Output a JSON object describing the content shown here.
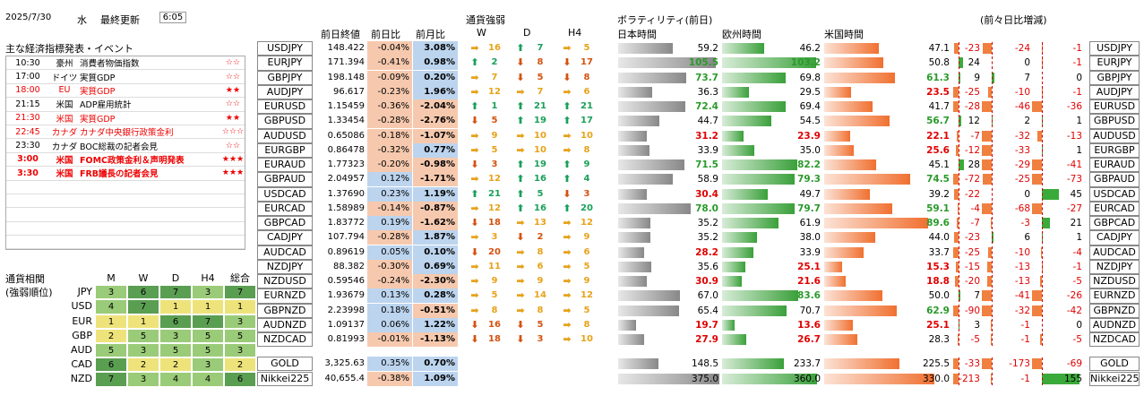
{
  "date": "2025/7/30",
  "weekday": "水",
  "updated_label": "最終更新",
  "updated_time": "6:05",
  "events_title": "主な経済指標発表・イベント",
  "events": [
    {
      "time": "10:30",
      "country": "豪州",
      "name": "消費者物価指数",
      "stars": "☆☆",
      "red": false,
      "bold": false
    },
    {
      "time": "17:00",
      "country": "ドイツ",
      "name": "実質GDP",
      "stars": "☆☆",
      "red": false,
      "bold": false
    },
    {
      "time": "18:00",
      "country": "EU",
      "name": "実質GDP",
      "stars": "★★",
      "red": true,
      "bold": false
    },
    {
      "time": "21:15",
      "country": "米国",
      "name": "ADP雇用統計",
      "stars": "☆☆",
      "red": false,
      "bold": false
    },
    {
      "time": "21:30",
      "country": "米国",
      "name": "実質GDP",
      "stars": "★★",
      "red": true,
      "bold": false
    },
    {
      "time": "22:45",
      "country": "カナダ",
      "name": "カナダ中央銀行政策金利",
      "stars": "☆☆☆",
      "red": true,
      "bold": false
    },
    {
      "time": "23:30",
      "country": "カナダ",
      "name": "BOC総裁の記者会見",
      "stars": "☆☆",
      "red": false,
      "bold": false
    },
    {
      "time": "3:00",
      "country": "米国",
      "name": "FOMC政策金利＆声明発表",
      "stars": "★★★",
      "red": true,
      "bold": true
    },
    {
      "time": "3:30",
      "country": "米国",
      "name": "FRB議長の記者会見",
      "stars": "★★★",
      "red": true,
      "bold": true
    },
    {
      "time": "",
      "country": "",
      "name": "",
      "stars": "",
      "red": false,
      "bold": false
    },
    {
      "time": "",
      "country": "",
      "name": "",
      "stars": "",
      "red": false,
      "bold": false
    },
    {
      "time": "",
      "country": "",
      "name": "",
      "stars": "",
      "red": false,
      "bold": false
    },
    {
      "time": "",
      "country": "",
      "name": "",
      "stars": "",
      "red": false,
      "bold": false
    },
    {
      "time": "",
      "country": "",
      "name": "",
      "stars": "",
      "red": false,
      "bold": false
    }
  ],
  "corr_title1": "通貨相関",
  "corr_title2": "(強弱順位)",
  "corr_headers": [
    "M",
    "W",
    "D",
    "H4",
    "総合"
  ],
  "corr_rows": [
    {
      "cur": "JPY",
      "v": [
        "3",
        "6",
        "7",
        "3",
        "7"
      ]
    },
    {
      "cur": "USD",
      "v": [
        "4",
        "7",
        "1",
        "1",
        "1"
      ]
    },
    {
      "cur": "EUR",
      "v": [
        "1",
        "1",
        "6",
        "7",
        "3"
      ]
    },
    {
      "cur": "GBP",
      "v": [
        "2",
        "5",
        "3",
        "5",
        "5"
      ]
    },
    {
      "cur": "AUD",
      "v": [
        "5",
        "3",
        "5",
        "5",
        "3"
      ]
    },
    {
      "cur": "CAD",
      "v": [
        "6",
        "2",
        "2",
        "3",
        "2"
      ]
    },
    {
      "cur": "NZD",
      "v": [
        "7",
        "3",
        "4",
        "4",
        "6"
      ]
    }
  ],
  "headers": {
    "close": "前日終値",
    "dchg": "前日比",
    "mchg": "前月比",
    "strength": "通貨強弱",
    "W": "W",
    "D": "D",
    "H4": "H4",
    "vol": "ボラティリティ(前日)",
    "jp": "日本時間",
    "eu": "欧州時間",
    "us": "米国時間",
    "change": "(前々日比増減)"
  },
  "rows": [
    {
      "p": "USDJPY",
      "c": "148.422",
      "d": "-0.04%",
      "m": "3.08%",
      "w": "r",
      "wn": "16",
      "dd": "u",
      "dn": "7",
      "h": "r",
      "hn": "5",
      "jp": "59.2",
      "eu": "46.2",
      "us": "47.1",
      "c1": "-23",
      "c2": "-24",
      "c3": "-1"
    },
    {
      "p": "EURJPY",
      "c": "171.394",
      "d": "-0.41%",
      "m": "0.98%",
      "w": "u",
      "wn": "2",
      "dd": "d",
      "dn": "8",
      "h": "d",
      "hn": "17",
      "jp": "105.5",
      "eu": "103.2",
      "us": "50.8",
      "c1": "24",
      "c2": "0",
      "c3": "-1"
    },
    {
      "p": "GBPJPY",
      "c": "198.148",
      "d": "-0.09%",
      "m": "0.20%",
      "w": "r",
      "wn": "7",
      "dd": "d",
      "dn": "5",
      "h": "d",
      "hn": "8",
      "jp": "73.7",
      "eu": "69.8",
      "us": "61.3",
      "c1": "9",
      "c2": "7",
      "c3": "0"
    },
    {
      "p": "AUDJPY",
      "c": "96.617",
      "d": "-0.23%",
      "m": "1.96%",
      "w": "r",
      "wn": "12",
      "dd": "r",
      "dn": "7",
      "h": "r",
      "hn": "6",
      "jp": "36.3",
      "eu": "29.5",
      "us": "23.5",
      "c1": "-25",
      "c2": "-10",
      "c3": "-1"
    },
    {
      "p": "EURUSD",
      "c": "1.15459",
      "d": "-0.36%",
      "m": "-2.04%",
      "w": "u",
      "wn": "1",
      "dd": "u",
      "dn": "21",
      "h": "u",
      "hn": "21",
      "jp": "72.4",
      "eu": "69.4",
      "us": "41.7",
      "c1": "-28",
      "c2": "-46",
      "c3": "-36"
    },
    {
      "p": "GBPUSD",
      "c": "1.33454",
      "d": "-0.28%",
      "m": "-2.76%",
      "w": "d",
      "wn": "5",
      "dd": "u",
      "dn": "19",
      "h": "u",
      "hn": "17",
      "jp": "44.7",
      "eu": "54.5",
      "us": "56.7",
      "c1": "12",
      "c2": "2",
      "c3": "1"
    },
    {
      "p": "AUDUSD",
      "c": "0.65086",
      "d": "-0.18%",
      "m": "-1.07%",
      "w": "r",
      "wn": "9",
      "dd": "r",
      "dn": "10",
      "h": "r",
      "hn": "10",
      "jp": "31.2",
      "eu": "23.9",
      "us": "22.1",
      "c1": "-7",
      "c2": "-32",
      "c3": "-13"
    },
    {
      "p": "EURGBP",
      "c": "0.86478",
      "d": "-0.32%",
      "m": "0.77%",
      "w": "r",
      "wn": "5",
      "dd": "r",
      "dn": "10",
      "h": "r",
      "hn": "8",
      "jp": "33.9",
      "eu": "35.0",
      "us": "25.6",
      "c1": "-12",
      "c2": "-33",
      "c3": "1"
    },
    {
      "p": "EURAUD",
      "c": "1.77323",
      "d": "-0.20%",
      "m": "-0.98%",
      "w": "d",
      "wn": "3",
      "dd": "u",
      "dn": "19",
      "h": "u",
      "hn": "9",
      "jp": "71.5",
      "eu": "82.2",
      "us": "45.1",
      "c1": "28",
      "c2": "-29",
      "c3": "-41"
    },
    {
      "p": "GBPAUD",
      "c": "2.04957",
      "d": "0.12%",
      "m": "-1.71%",
      "w": "r",
      "wn": "12",
      "dd": "u",
      "dn": "16",
      "h": "u",
      "hn": "4",
      "jp": "58.9",
      "eu": "79.3",
      "us": "74.5",
      "c1": "-72",
      "c2": "-25",
      "c3": "-73"
    },
    {
      "p": "USDCAD",
      "c": "1.37690",
      "d": "0.23%",
      "m": "1.19%",
      "w": "u",
      "wn": "21",
      "dd": "u",
      "dn": "5",
      "h": "d",
      "hn": "3",
      "jp": "30.4",
      "eu": "49.7",
      "us": "39.2",
      "c1": "-22",
      "c2": "0",
      "c3": "45"
    },
    {
      "p": "EURCAD",
      "c": "1.58989",
      "d": "-0.14%",
      "m": "-0.87%",
      "w": "r",
      "wn": "12",
      "dd": "u",
      "dn": "16",
      "h": "u",
      "hn": "20",
      "jp": "78.0",
      "eu": "79.7",
      "us": "59.1",
      "c1": "-4",
      "c2": "-68",
      "c3": "-27"
    },
    {
      "p": "GBPCAD",
      "c": "1.83772",
      "d": "0.19%",
      "m": "-1.62%",
      "w": "d",
      "wn": "18",
      "dd": "r",
      "dn": "13",
      "h": "r",
      "hn": "12",
      "jp": "35.2",
      "eu": "61.9",
      "us": "89.6",
      "c1": "-7",
      "c2": "-3",
      "c3": "21"
    },
    {
      "p": "CADJPY",
      "c": "107.794",
      "d": "-0.28%",
      "m": "1.87%",
      "w": "r",
      "wn": "3",
      "dd": "d",
      "dn": "2",
      "h": "r",
      "hn": "9",
      "jp": "35.2",
      "eu": "38.0",
      "us": "44.0",
      "c1": "-23",
      "c2": "6",
      "c3": "1"
    },
    {
      "p": "AUDCAD",
      "c": "0.89619",
      "d": "0.05%",
      "m": "0.10%",
      "w": "d",
      "wn": "20",
      "dd": "r",
      "dn": "8",
      "h": "r",
      "hn": "6",
      "jp": "28.2",
      "eu": "33.9",
      "us": "33.7",
      "c1": "-25",
      "c2": "-10",
      "c3": "-4"
    },
    {
      "p": "NZDJPY",
      "c": "88.382",
      "d": "-0.30%",
      "m": "0.69%",
      "w": "r",
      "wn": "11",
      "dd": "r",
      "dn": "6",
      "h": "r",
      "hn": "5",
      "jp": "35.6",
      "eu": "25.1",
      "us": "15.3",
      "c1": "-15",
      "c2": "-13",
      "c3": "-1"
    },
    {
      "p": "NZDUSD",
      "c": "0.59546",
      "d": "-0.24%",
      "m": "-2.30%",
      "w": "r",
      "wn": "9",
      "dd": "r",
      "dn": "9",
      "h": "r",
      "hn": "9",
      "jp": "30.9",
      "eu": "21.6",
      "us": "18.8",
      "c1": "-20",
      "c2": "-13",
      "c3": "-5"
    },
    {
      "p": "EURNZD",
      "c": "1.93679",
      "d": "0.13%",
      "m": "0.28%",
      "w": "r",
      "wn": "5",
      "dd": "r",
      "dn": "14",
      "h": "r",
      "hn": "12",
      "jp": "67.0",
      "eu": "83.6",
      "us": "50.0",
      "c1": "7",
      "c2": "-41",
      "c3": "-26"
    },
    {
      "p": "GBPNZD",
      "c": "2.23998",
      "d": "0.18%",
      "m": "-0.51%",
      "w": "r",
      "wn": "8",
      "dd": "r",
      "dn": "8",
      "h": "r",
      "hn": "5",
      "jp": "65.4",
      "eu": "70.7",
      "us": "62.9",
      "c1": "-90",
      "c2": "-32",
      "c3": "-42"
    },
    {
      "p": "AUDNZD",
      "c": "1.09137",
      "d": "0.06%",
      "m": "1.22%",
      "w": "d",
      "wn": "16",
      "dd": "d",
      "dn": "5",
      "h": "r",
      "hn": "8",
      "jp": "19.7",
      "eu": "13.6",
      "us": "25.1",
      "c1": "3",
      "c2": "-1",
      "c3": "0"
    },
    {
      "p": "NZDCAD",
      "c": "0.81993",
      "d": "-0.01%",
      "m": "-1.13%",
      "w": "d",
      "wn": "18",
      "dd": "d",
      "dn": "3",
      "h": "r",
      "hn": "10",
      "jp": "27.9",
      "eu": "26.7",
      "us": "28.3",
      "c1": "-5",
      "c2": "-1",
      "c3": "-5"
    }
  ],
  "extras": [
    {
      "p": "GOLD",
      "c": "3,325.63",
      "d": "0.35%",
      "m": "0.70%",
      "jp": "148.5",
      "eu": "233.7",
      "us": "225.5",
      "c1": "-33",
      "c2": "-173",
      "c3": "-69"
    },
    {
      "p": "Nikkei225",
      "c": "40,655.4",
      "d": "-0.38%",
      "m": "1.09%",
      "jp": "375.0",
      "eu": "360.0",
      "us": "330.0",
      "c1": "-213",
      "c2": "-1",
      "c3": "155"
    }
  ],
  "colors": {
    "up": "#1aa05a",
    "down": "#d4520f",
    "side": "#e8a21a",
    "red": "#e00000",
    "green": "#2a9a2a",
    "orange": "#f08040"
  }
}
